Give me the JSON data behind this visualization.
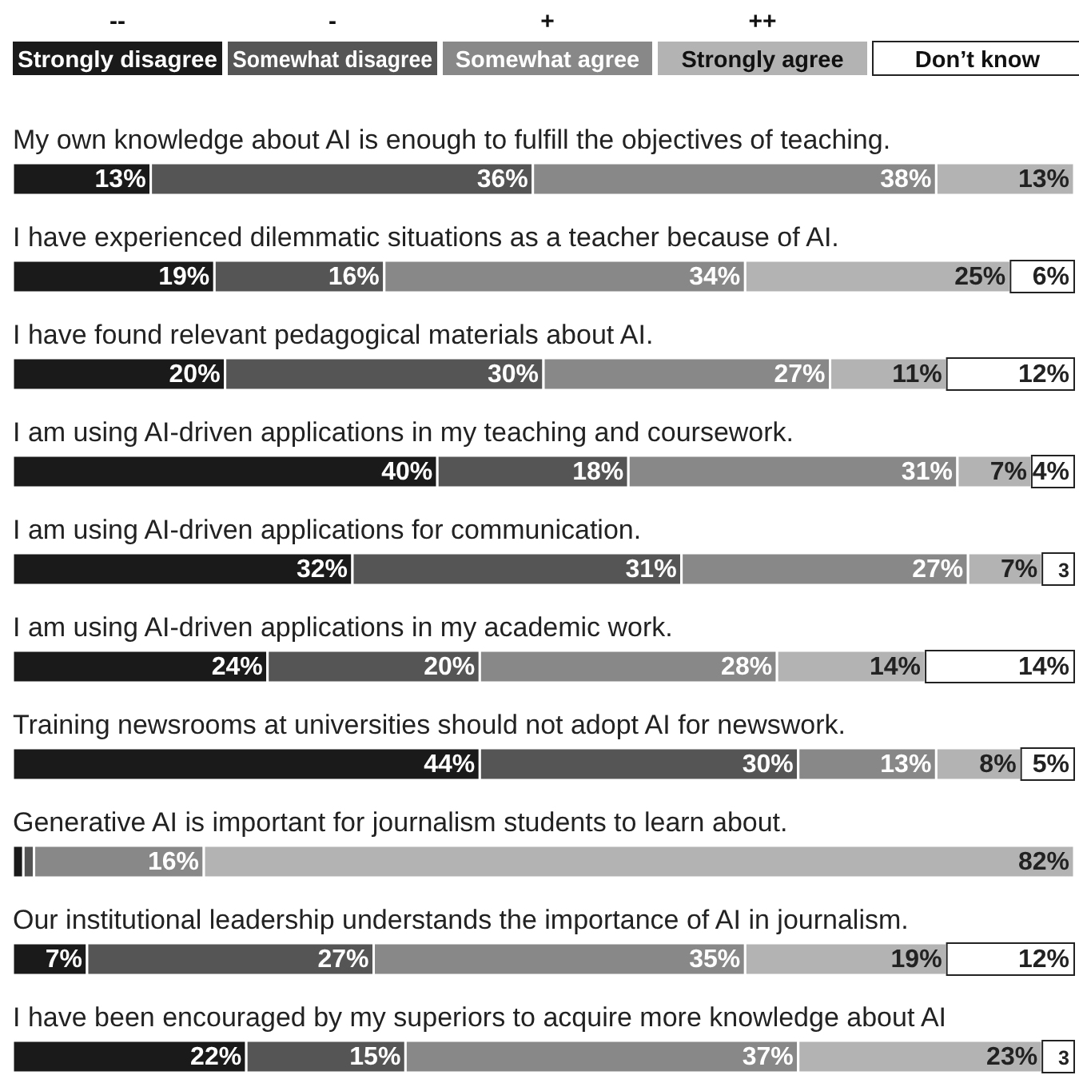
{
  "chart_data": {
    "type": "bar",
    "orientation": "horizontal",
    "stacked": true,
    "legend": "top",
    "xlim": [
      0,
      100
    ],
    "categories": [
      "My own knowledge about AI is enough to fulfill the objectives of teaching.",
      "I have experienced dilemmatic situations as a teacher because of AI.",
      "I have found relevant pedagogical materials about AI.",
      "I am using AI-driven applications in my teaching and coursework.",
      "I am using AI-driven applications for communication.",
      "I am using AI-driven applications in my academic work.",
      "Training newsrooms at universities should not adopt AI for newswork.",
      "Generative AI is important for journalism students to learn about.",
      "Our institutional leadership understands the importance of AI in journalism.",
      "I have been encouraged by my superiors to acquire more knowledge about AI"
    ],
    "annotations": [
      "--",
      "-",
      "+",
      "++"
    ],
    "series": [
      {
        "name": "Strongly disagree",
        "color": "#1a1a1a",
        "values": [
          13,
          19,
          20,
          40,
          32,
          24,
          44,
          1,
          7,
          22
        ],
        "value_labels": [
          "13%",
          "19%",
          "20%",
          "40%",
          "32%",
          "24%",
          "44%",
          null,
          "7%",
          "22%"
        ]
      },
      {
        "name": "Somewhat disagree",
        "color": "#555555",
        "values": [
          36,
          16,
          30,
          18,
          31,
          20,
          30,
          1,
          27,
          15
        ],
        "value_labels": [
          "36%",
          "16%",
          "30%",
          "18%",
          "31%",
          "20%",
          "30%",
          null,
          "27%",
          "15%"
        ]
      },
      {
        "name": "Somewhat agree",
        "color": "#888888",
        "values": [
          38,
          34,
          27,
          31,
          27,
          28,
          13,
          16,
          35,
          37
        ],
        "value_labels": [
          "38%",
          "34%",
          "27%",
          "31%",
          "27%",
          "28%",
          "13%",
          "16%",
          "35%",
          "37%"
        ]
      },
      {
        "name": "Strongly agree",
        "color": "#b3b3b3",
        "values": [
          13,
          25,
          11,
          7,
          7,
          14,
          8,
          82,
          19,
          23
        ],
        "value_labels": [
          "13%",
          "25%",
          "11%",
          "7%",
          "7%",
          "14%",
          "8%",
          "82%",
          "19%",
          "23%"
        ]
      },
      {
        "name": "Don’t know",
        "color": "#ffffff",
        "values": [
          0,
          6,
          12,
          4,
          3,
          14,
          5,
          0,
          12,
          3
        ],
        "value_labels": [
          null,
          "6%",
          "12%",
          "4%",
          "3",
          "14%",
          "5%",
          null,
          "12%",
          "3"
        ]
      }
    ]
  }
}
